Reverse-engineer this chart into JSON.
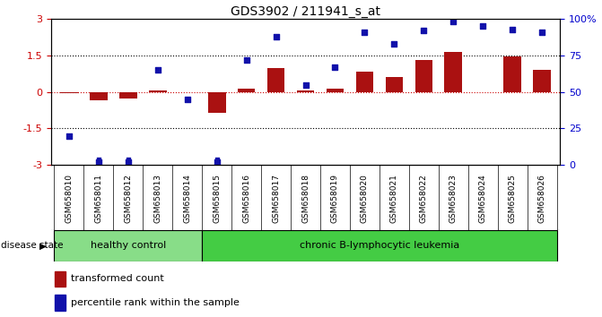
{
  "title": "GDS3902 / 211941_s_at",
  "samples": [
    "GSM658010",
    "GSM658011",
    "GSM658012",
    "GSM658013",
    "GSM658014",
    "GSM658015",
    "GSM658016",
    "GSM658017",
    "GSM658018",
    "GSM658019",
    "GSM658020",
    "GSM658021",
    "GSM658022",
    "GSM658023",
    "GSM658024",
    "GSM658025",
    "GSM658026"
  ],
  "bar_values": [
    -0.05,
    -0.35,
    -0.28,
    0.05,
    0.0,
    -0.85,
    0.12,
    1.0,
    0.05,
    0.13,
    0.85,
    0.6,
    1.3,
    1.65,
    0.0,
    1.45,
    0.9
  ],
  "dot_values": [
    20,
    2,
    2,
    65,
    45,
    2,
    72,
    88,
    55,
    67,
    91,
    83,
    92,
    98,
    95,
    93,
    91
  ],
  "bar_color": "#aa1111",
  "dot_color": "#1111aa",
  "ylim_left": [
    -3,
    3
  ],
  "ylim_right": [
    0,
    100
  ],
  "yticks_left": [
    -3,
    -1.5,
    0,
    1.5,
    3
  ],
  "yticks_right": [
    0,
    25,
    50,
    75,
    100
  ],
  "yticklabels_left": [
    "-3",
    "-1.5",
    "0",
    "1.5",
    "3"
  ],
  "yticklabels_right": [
    "0",
    "25",
    "50",
    "75",
    "100%"
  ],
  "hlines": [
    0.0,
    1.5,
    -1.5
  ],
  "hline_colors": [
    "#cc0000",
    "#000000",
    "#000000"
  ],
  "groups": [
    {
      "label": "healthy control",
      "start": 0,
      "end": 4,
      "color": "#88dd88"
    },
    {
      "label": "chronic B-lymphocytic leukemia",
      "start": 5,
      "end": 16,
      "color": "#44cc44"
    }
  ],
  "disease_state_label": "disease state",
  "legend_bar_label": "transformed count",
  "legend_dot_label": "percentile rank within the sample",
  "bg_color": "#ffffff",
  "plot_bg_color": "#ffffff",
  "tick_label_color_left": "#cc0000",
  "tick_label_color_right": "#0000cc",
  "label_box_color": "#d0d0d0",
  "title_fontsize": 10,
  "axis_fontsize": 8,
  "label_fontsize": 6.5
}
